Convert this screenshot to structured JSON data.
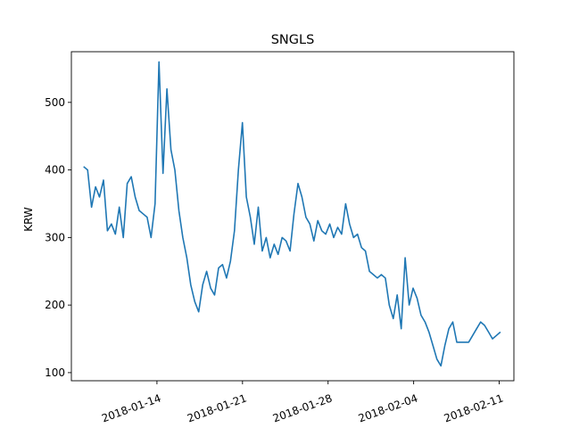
{
  "chart_data": {
    "type": "line",
    "title": "SNGLS",
    "xlabel": "",
    "ylabel": "KRW",
    "x_start": "2018-01-08",
    "x_end": "2018-02-12",
    "xlim": [
      "2018-01-07",
      "2018-02-12"
    ],
    "ylim": [
      88,
      575
    ],
    "xticks": [
      "2018-01-14",
      "2018-01-21",
      "2018-01-28",
      "2018-02-04",
      "2018-02-11"
    ],
    "yticks": [
      100,
      200,
      300,
      400,
      500
    ],
    "grid": false,
    "series": [
      {
        "color": "#1f77b4",
        "values": [
          405,
          400,
          345,
          375,
          360,
          385,
          310,
          320,
          305,
          345,
          300,
          380,
          390,
          360,
          340,
          335,
          330,
          300,
          350,
          560,
          395,
          520,
          430,
          400,
          340,
          300,
          270,
          230,
          205,
          190,
          230,
          250,
          225,
          215,
          255,
          260,
          240,
          265,
          310,
          400,
          470,
          360,
          330,
          290,
          345,
          280,
          300,
          270,
          290,
          275,
          300,
          295,
          280,
          335,
          380,
          360,
          330,
          320,
          295,
          325,
          310,
          305,
          320,
          300,
          315,
          305,
          350,
          320,
          300,
          305,
          285,
          280,
          250,
          245,
          240,
          245,
          240,
          200,
          180,
          215,
          165,
          270,
          200,
          225,
          210,
          185,
          175,
          160,
          140,
          120,
          110,
          140,
          165,
          175,
          145,
          145,
          145,
          145,
          155,
          165,
          175,
          170,
          160,
          150,
          155,
          160
        ]
      }
    ]
  }
}
